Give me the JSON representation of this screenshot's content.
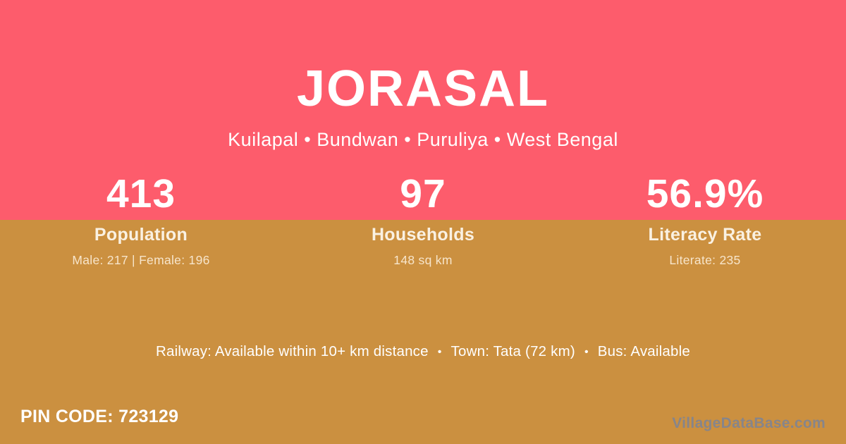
{
  "village": {
    "title": "JORASAL",
    "subtitle": "Kuilapal • Bundwan • Puruliya • West Bengal"
  },
  "stats": [
    {
      "value": "413",
      "label": "Population",
      "sub": "Male: 217 | Female: 196"
    },
    {
      "value": "97",
      "label": "Households",
      "sub": "148 sq km"
    },
    {
      "value": "56.9%",
      "label": "Literacy Rate",
      "sub": "Literate: 235"
    }
  ],
  "transit": {
    "items": [
      "Railway: Available within 10+ km distance",
      "Town: Tata (72 km)",
      "Bus: Available"
    ],
    "separator": "•"
  },
  "footer": {
    "pin_code": "PIN CODE: 723129",
    "watermark": "VillageDataBase.com"
  },
  "colors": {
    "top_band": "#FD5C6C",
    "bottom_band": "#CB9040",
    "text": "#FFFFFF",
    "watermark": "#87858A"
  }
}
